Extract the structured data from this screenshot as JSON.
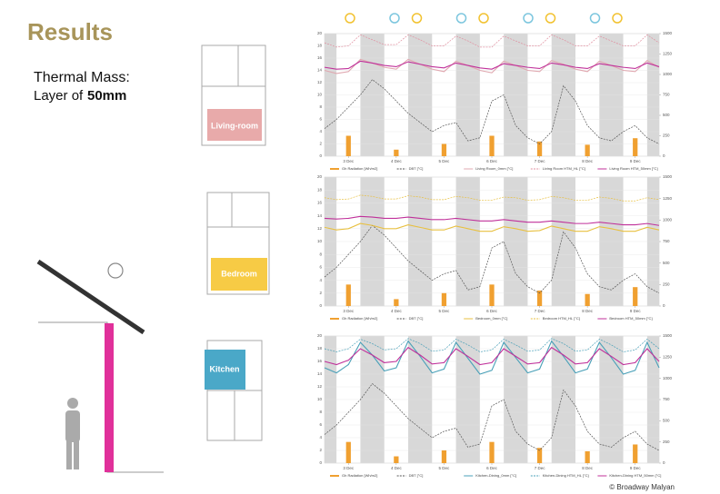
{
  "header": {
    "title": "Results",
    "subtitle_line1": "Thermal Mass:",
    "subtitle_line2": "Layer of",
    "subtitle_bold": "50mm"
  },
  "rooms": [
    "Living-room",
    "Bedroom",
    "Kitchen"
  ],
  "footer": "© Broadway Malyan",
  "chart_data": [
    {
      "type": "line",
      "x": [
        0,
        6,
        12,
        18,
        24,
        30,
        36,
        42,
        48,
        54,
        60,
        66,
        72,
        78,
        84,
        90,
        96,
        102,
        108,
        114,
        120,
        126,
        132,
        138,
        144,
        150,
        156,
        162,
        168
      ],
      "xlim": [
        0,
        168
      ],
      "xticks": [
        {
          "value": 12,
          "label": "3 Dec"
        },
        {
          "value": 36,
          "label": "4 Dec"
        },
        {
          "value": 60,
          "label": "5 Dec"
        },
        {
          "value": 84,
          "label": "6 Dec"
        },
        {
          "value": 108,
          "label": "7 Dec"
        },
        {
          "value": 132,
          "label": "8 Dec"
        },
        {
          "value": 156,
          "label": "9 Dec"
        }
      ],
      "ylim": [
        0,
        20
      ],
      "yticks": [
        0,
        2,
        4,
        6,
        8,
        10,
        12,
        14,
        16,
        18,
        20
      ],
      "y2lim": [
        0,
        1500
      ],
      "y2ticks": [
        0,
        250,
        500,
        750,
        1000,
        1250,
        1500
      ],
      "series": [
        {
          "name": "Gh Radiation [Wh/m2]",
          "type": "bar",
          "axis": "y2",
          "color": "#f0a030",
          "values": [
            0,
            0,
            250,
            0,
            0,
            0,
            80,
            0,
            0,
            0,
            150,
            0,
            0,
            0,
            250,
            0,
            0,
            0,
            180,
            0,
            0,
            0,
            140,
            0,
            0,
            0,
            220,
            0,
            0
          ]
        },
        {
          "name": "DBT [°C]",
          "type": "line",
          "style": "dashed",
          "color": "#555555",
          "values": [
            4.5,
            6,
            8,
            10,
            12.5,
            11,
            9,
            7,
            5.5,
            4,
            5,
            5.5,
            2.5,
            3,
            9,
            10,
            5,
            3,
            2,
            4,
            11.5,
            9,
            5,
            3,
            2.5,
            4,
            5,
            3,
            2
          ]
        },
        {
          "name": "Living Room_0mm [°C]",
          "type": "line",
          "style": "solid",
          "color": "#e0a8b0",
          "values": [
            14,
            13.5,
            13.8,
            15.8,
            15.2,
            14.5,
            14.2,
            15.8,
            15,
            14.2,
            13.8,
            15.5,
            14.8,
            14,
            13.6,
            15.5,
            14.8,
            14,
            13.8,
            15.6,
            15,
            14.2,
            13.8,
            15.5,
            14.8,
            14,
            13.8,
            15.6,
            14.5
          ]
        },
        {
          "name": "Living Room HTM_HL [°C]",
          "type": "line",
          "style": "dashed",
          "color": "#e090a0",
          "values": [
            18.5,
            17.8,
            18,
            19.8,
            19,
            18.2,
            18.2,
            19.8,
            19,
            18,
            18,
            19.6,
            18.8,
            17.8,
            17.8,
            19.6,
            18.8,
            18,
            18,
            19.8,
            19,
            18,
            18,
            19.6,
            18.8,
            18,
            18,
            19.8,
            18.5
          ]
        },
        {
          "name": "Living Room HTM_50mm [°C]",
          "type": "line",
          "style": "solid",
          "color": "#c0309a",
          "values": [
            14.5,
            14.2,
            14.3,
            15.5,
            15.2,
            14.8,
            14.6,
            15.4,
            15,
            14.6,
            14.4,
            15.2,
            14.8,
            14.4,
            14.2,
            15.1,
            14.8,
            14.5,
            14.3,
            15.2,
            14.9,
            14.5,
            14.3,
            15.1,
            14.8,
            14.5,
            14.3,
            15.2,
            14.6
          ]
        }
      ]
    },
    {
      "type": "line",
      "x": [
        0,
        6,
        12,
        18,
        24,
        30,
        36,
        42,
        48,
        54,
        60,
        66,
        72,
        78,
        84,
        90,
        96,
        102,
        108,
        114,
        120,
        126,
        132,
        138,
        144,
        150,
        156,
        162,
        168
      ],
      "xlim": [
        0,
        168
      ],
      "xticks": [
        {
          "value": 12,
          "label": "3 Dec"
        },
        {
          "value": 36,
          "label": "4 Dec"
        },
        {
          "value": 60,
          "label": "5 Dec"
        },
        {
          "value": 84,
          "label": "6 Dec"
        },
        {
          "value": 108,
          "label": "7 Dec"
        },
        {
          "value": 132,
          "label": "8 Dec"
        },
        {
          "value": 156,
          "label": "9 Dec"
        }
      ],
      "ylim": [
        0,
        20
      ],
      "yticks": [
        0,
        2,
        4,
        6,
        8,
        10,
        12,
        14,
        16,
        18,
        20
      ],
      "y2lim": [
        0,
        1500
      ],
      "y2ticks": [
        0,
        250,
        500,
        750,
        1000,
        1250,
        1500
      ],
      "series": [
        {
          "name": "Gh Radiation [Wh/m2]",
          "type": "bar",
          "axis": "y2",
          "color": "#f0a030",
          "values": [
            0,
            0,
            250,
            0,
            0,
            0,
            80,
            0,
            0,
            0,
            150,
            0,
            0,
            0,
            250,
            0,
            0,
            0,
            180,
            0,
            0,
            0,
            140,
            0,
            0,
            0,
            220,
            0,
            0
          ]
        },
        {
          "name": "DBT [°C]",
          "type": "line",
          "style": "dashed",
          "color": "#555555",
          "values": [
            4.5,
            6,
            8,
            10,
            12.5,
            11,
            9,
            7,
            5.5,
            4,
            5,
            5.5,
            2.5,
            3,
            9,
            10,
            5,
            3,
            2,
            4,
            11.5,
            9,
            5,
            3,
            2.5,
            4,
            5,
            3,
            2
          ]
        },
        {
          "name": "Bedroom_0mm [°C]",
          "type": "line",
          "style": "solid",
          "color": "#e8c040",
          "values": [
            12.2,
            11.8,
            12,
            12.8,
            12.5,
            12,
            12,
            12.6,
            12.2,
            11.8,
            11.8,
            12.4,
            12,
            11.6,
            11.6,
            12.3,
            12,
            11.6,
            11.7,
            12.4,
            12,
            11.6,
            11.6,
            12.3,
            12,
            11.6,
            11.6,
            12.2,
            11.8
          ]
        },
        {
          "name": "Bedroom HTM_HL [°C]",
          "type": "line",
          "style": "dashed",
          "color": "#e8c040",
          "values": [
            16.8,
            16.5,
            16.6,
            17.2,
            17,
            16.6,
            16.6,
            17.1,
            16.9,
            16.5,
            16.5,
            17,
            16.8,
            16.4,
            16.4,
            16.9,
            16.8,
            16.4,
            16.5,
            17,
            16.8,
            16.4,
            16.4,
            16.9,
            16.7,
            16.3,
            16.3,
            16.8,
            16.5
          ]
        },
        {
          "name": "Bedroom HTM_50mm [°C]",
          "type": "line",
          "style": "solid",
          "color": "#c0309a",
          "values": [
            13.6,
            13.5,
            13.6,
            13.9,
            13.8,
            13.6,
            13.6,
            13.8,
            13.6,
            13.4,
            13.4,
            13.6,
            13.4,
            13.2,
            13.2,
            13.4,
            13.2,
            13,
            13,
            13.2,
            13,
            12.8,
            12.8,
            13,
            12.8,
            12.6,
            12.6,
            12.8,
            12.5
          ]
        }
      ]
    },
    {
      "type": "line",
      "x": [
        0,
        6,
        12,
        18,
        24,
        30,
        36,
        42,
        48,
        54,
        60,
        66,
        72,
        78,
        84,
        90,
        96,
        102,
        108,
        114,
        120,
        126,
        132,
        138,
        144,
        150,
        156,
        162,
        168
      ],
      "xlim": [
        0,
        168
      ],
      "xticks": [
        {
          "value": 12,
          "label": "3 Dec"
        },
        {
          "value": 36,
          "label": "4 Dec"
        },
        {
          "value": 60,
          "label": "5 Dec"
        },
        {
          "value": 84,
          "label": "6 Dec"
        },
        {
          "value": 108,
          "label": "7 Dec"
        },
        {
          "value": 132,
          "label": "8 Dec"
        },
        {
          "value": 156,
          "label": "9 Dec"
        }
      ],
      "ylim": [
        0,
        20
      ],
      "yticks": [
        0,
        2,
        4,
        6,
        8,
        10,
        12,
        14,
        16,
        18,
        20
      ],
      "y2lim": [
        0,
        1500
      ],
      "y2ticks": [
        0,
        250,
        500,
        750,
        1000,
        1250,
        1500
      ],
      "series": [
        {
          "name": "Gh Radiation [Wh/m2]",
          "type": "bar",
          "axis": "y2",
          "color": "#f0a030",
          "values": [
            0,
            0,
            250,
            0,
            0,
            0,
            80,
            0,
            0,
            0,
            150,
            0,
            0,
            0,
            250,
            0,
            0,
            0,
            180,
            0,
            0,
            0,
            140,
            0,
            0,
            0,
            220,
            0,
            0
          ]
        },
        {
          "name": "DBT [°C]",
          "type": "line",
          "style": "dashed",
          "color": "#555555",
          "values": [
            4.5,
            6,
            8,
            10,
            12.5,
            11,
            9,
            7,
            5.5,
            4,
            5,
            5.5,
            2.5,
            3,
            9,
            10,
            5,
            3,
            2,
            4,
            11.5,
            9,
            5,
            3,
            2.5,
            4,
            5,
            3,
            2
          ]
        },
        {
          "name": "Kitchen-Dining_0mm [°C]",
          "type": "line",
          "style": "solid",
          "color": "#4aa0b8",
          "values": [
            15,
            14.2,
            15.5,
            19,
            17,
            14.5,
            15,
            19.2,
            16.8,
            14.2,
            14.8,
            19,
            16.5,
            14,
            14.6,
            19,
            16.6,
            14.2,
            14.8,
            19.2,
            16.8,
            14.2,
            14.8,
            19,
            16.6,
            14,
            14.6,
            19,
            15
          ]
        },
        {
          "name": "Kitchen-Dining HTM_HL [°C]",
          "type": "line",
          "style": "dashed",
          "color": "#4aa0b8",
          "values": [
            18,
            17.5,
            18,
            19.5,
            18.8,
            17.8,
            18,
            19.6,
            18.8,
            17.6,
            17.8,
            19.5,
            18.6,
            17.5,
            17.8,
            19.5,
            18.6,
            17.6,
            17.8,
            19.6,
            18.8,
            17.6,
            17.8,
            19.5,
            18.6,
            17.5,
            17.8,
            19.5,
            18
          ]
        },
        {
          "name": "Kitchen-Dining HTM_50mm [°C]",
          "type": "line",
          "style": "solid",
          "color": "#c0309a",
          "values": [
            16,
            15.5,
            16.2,
            18,
            17,
            15.8,
            16,
            18.2,
            17,
            15.6,
            15.8,
            18,
            16.8,
            15.5,
            15.8,
            18,
            16.8,
            15.6,
            15.8,
            18.2,
            17,
            15.6,
            15.8,
            18,
            16.8,
            15.5,
            15.8,
            18,
            16
          ]
        }
      ]
    }
  ]
}
